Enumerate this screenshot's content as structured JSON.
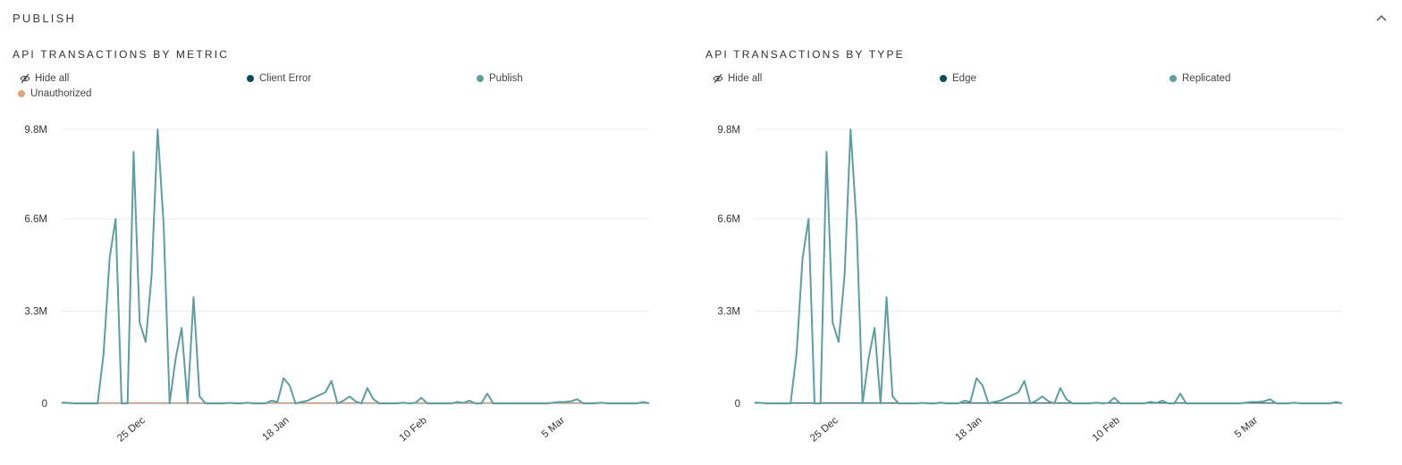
{
  "section": {
    "title": "PUBLISH"
  },
  "charts": [
    {
      "id": "metric",
      "title": "API TRANSACTIONS BY METRIC",
      "legend": [
        {
          "label": "Hide all",
          "type": "hide"
        },
        {
          "label": "Client Error",
          "color": "#0d4b5a"
        },
        {
          "label": "Publish",
          "color": "#5f9ea0"
        },
        {
          "label": "Unauthorized",
          "color": "#e0a27d"
        }
      ]
    },
    {
      "id": "type",
      "title": "API TRANSACTIONS BY TYPE",
      "legend": [
        {
          "label": "Hide all",
          "type": "hide"
        },
        {
          "label": "Edge",
          "color": "#0d4b5a"
        },
        {
          "label": "Replicated",
          "color": "#5f9ea0"
        }
      ]
    }
  ],
  "chart_data": [
    {
      "type": "line",
      "title": "API TRANSACTIONS BY METRIC",
      "y_ticks": [
        "9.8M",
        "6.6M",
        "3.3M",
        "0"
      ],
      "ylim": [
        0,
        9.8
      ],
      "grid": true,
      "legend_position": "top",
      "x_ticks": [
        {
          "label": "25 Dec",
          "index": 14
        },
        {
          "label": "18 Jan",
          "index": 38
        },
        {
          "label": "10 Feb",
          "index": 61
        },
        {
          "label": "5 Mar",
          "index": 84
        }
      ],
      "series": [
        {
          "name": "Publish",
          "color": "#5f9ea0",
          "values": [
            0.03,
            0.02,
            0,
            0,
            0,
            0,
            0,
            1.8,
            5.2,
            6.6,
            0,
            0,
            9.0,
            2.9,
            2.2,
            4.6,
            9.8,
            6.4,
            0,
            1.6,
            2.7,
            0,
            3.8,
            0.25,
            0,
            0,
            0,
            0,
            0.02,
            0,
            0,
            0.03,
            0,
            0,
            0,
            0.1,
            0.05,
            0.9,
            0.65,
            0,
            0.05,
            0.1,
            0.2,
            0.3,
            0.4,
            0.8,
            0,
            0.1,
            0.25,
            0.08,
            0,
            0.55,
            0.15,
            0,
            0,
            0,
            0,
            0.03,
            0,
            0.02,
            0.2,
            0,
            0,
            0,
            0,
            0,
            0.05,
            0.02,
            0.1,
            0,
            0,
            0.35,
            0,
            0,
            0,
            0,
            0,
            0,
            0,
            0,
            0,
            0,
            0.03,
            0.05,
            0.05,
            0.08,
            0.15,
            0,
            0,
            0,
            0.03,
            0,
            0,
            0,
            0,
            0,
            0,
            0.05,
            0
          ]
        },
        {
          "name": "Client Error",
          "color": "#0d4b5a",
          "values": []
        },
        {
          "name": "Unauthorized",
          "color": "#e0a27d",
          "values": []
        }
      ]
    },
    {
      "type": "line",
      "title": "API TRANSACTIONS BY TYPE",
      "y_ticks": [
        "9.8M",
        "6.6M",
        "3.3M",
        "0"
      ],
      "ylim": [
        0,
        9.8
      ],
      "grid": true,
      "legend_position": "top",
      "x_ticks": [
        {
          "label": "25 Dec",
          "index": 14
        },
        {
          "label": "18 Jan",
          "index": 38
        },
        {
          "label": "10 Feb",
          "index": 61
        },
        {
          "label": "5 Mar",
          "index": 84
        }
      ],
      "series": [
        {
          "name": "Replicated",
          "color": "#5f9ea0",
          "values": [
            0.03,
            0.02,
            0,
            0,
            0,
            0,
            0,
            1.8,
            5.2,
            6.6,
            0,
            0,
            9.0,
            2.9,
            2.2,
            4.6,
            9.8,
            6.4,
            0,
            1.6,
            2.7,
            0,
            3.8,
            0.25,
            0,
            0,
            0,
            0,
            0.02,
            0,
            0,
            0.03,
            0,
            0,
            0,
            0.1,
            0.05,
            0.9,
            0.65,
            0,
            0.05,
            0.1,
            0.2,
            0.3,
            0.4,
            0.8,
            0,
            0.1,
            0.25,
            0.08,
            0,
            0.55,
            0.15,
            0,
            0,
            0,
            0,
            0.03,
            0,
            0.02,
            0.2,
            0,
            0,
            0,
            0,
            0,
            0.05,
            0.02,
            0.1,
            0,
            0,
            0.35,
            0,
            0,
            0,
            0,
            0,
            0,
            0,
            0,
            0,
            0,
            0.03,
            0.05,
            0.05,
            0.08,
            0.15,
            0,
            0,
            0,
            0.03,
            0,
            0,
            0,
            0,
            0,
            0,
            0.05,
            0
          ]
        },
        {
          "name": "Edge",
          "color": "#0d4b5a",
          "values": []
        }
      ]
    }
  ]
}
